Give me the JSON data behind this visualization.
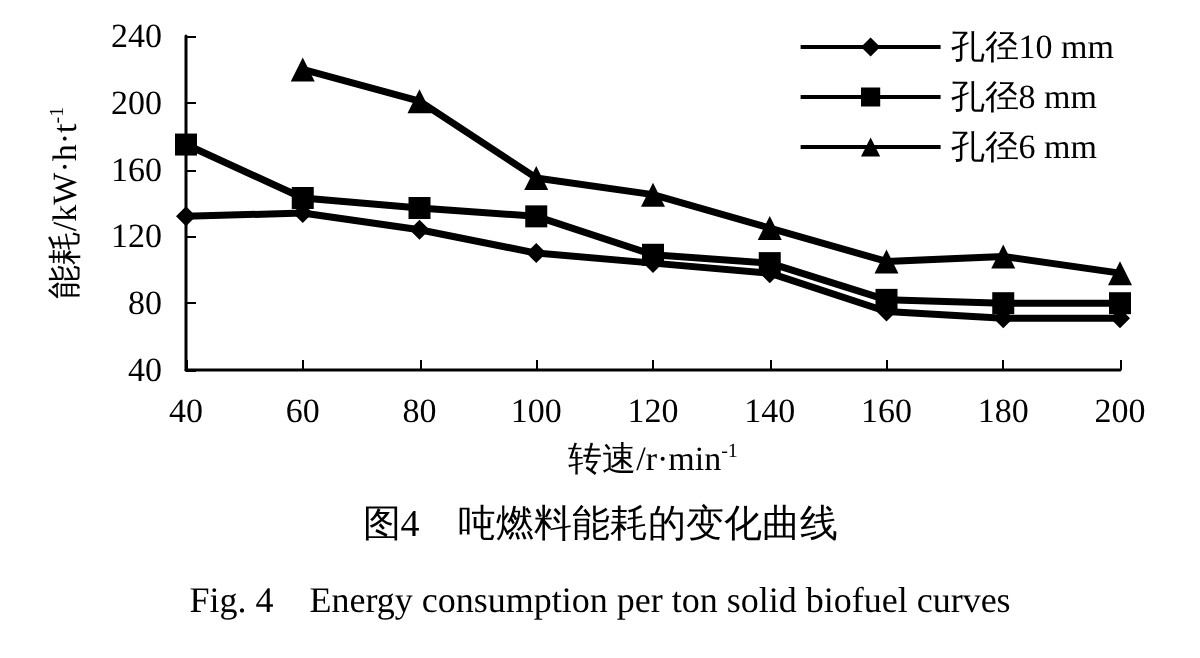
{
  "chart_data": {
    "type": "line",
    "xlabel": "转速/r·min$^{-1}$",
    "ylabel": "能耗/kW·h·t$^{-1}$",
    "annotations": [
      "图4　吨燃料能耗的变化曲线",
      "Fig. 4　Energy consumption per ton solid biofuel curves"
    ],
    "x": [
      40,
      60,
      80,
      100,
      120,
      140,
      160,
      180,
      200
    ],
    "series": [
      {
        "name": "孔径10 mm",
        "color": "#000000",
        "marker": "diamond",
        "values": [
          132,
          134,
          124,
          110,
          104,
          98,
          75,
          71,
          71
        ]
      },
      {
        "name": "孔径8 mm",
        "color": "#000000",
        "marker": "square",
        "values": [
          175,
          143,
          137,
          132,
          109,
          104,
          82,
          80,
          80
        ]
      },
      {
        "name": "孔径6 mm",
        "color": "#000000",
        "marker": "triangle",
        "values": [
          null,
          220,
          201,
          155,
          145,
          125,
          105,
          108,
          98
        ]
      }
    ],
    "xlim": [
      40,
      200
    ],
    "xticks": [
      40,
      60,
      80,
      100,
      120,
      140,
      160,
      180,
      200
    ],
    "ylim": [
      40,
      240
    ],
    "yticks": [
      40,
      80,
      120,
      160,
      200,
      240
    ],
    "grid": false,
    "legend": "top right",
    "line_style": "solid"
  }
}
